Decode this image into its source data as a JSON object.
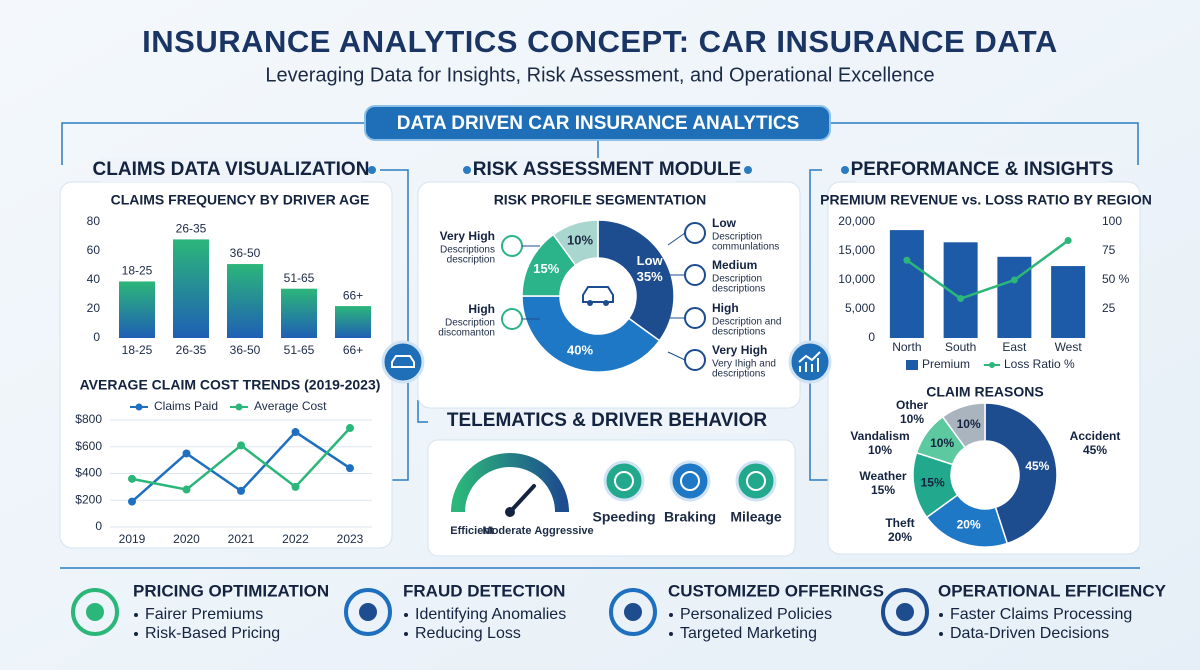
{
  "header": {
    "title": "INSURANCE ANALYTICS CONCEPT: CAR INSURANCE DATA",
    "subtitle": "Leveraging Data for Insights, Risk Assessment, and Operational Excellence",
    "banner": "DATA DRIVEN CAR INSURANCE ANALYTICS"
  },
  "sections": {
    "claims": "CLAIMS DATA VISUALIZATION",
    "risk": "RISK ASSESSMENT MODULE",
    "performance": "PERFORMANCE & INSIGHTS",
    "telematics": "TELEMATICS & DRIVER BEHAVIOR"
  },
  "chart_data": [
    {
      "type": "bar",
      "title": "CLAIMS FREQUENCY BY DRIVER AGE",
      "categories": [
        "18-25",
        "26-35",
        "36-50",
        "51-65",
        "66+"
      ],
      "values": [
        39,
        68,
        51,
        34,
        22
      ],
      "color": "#1f5fb5",
      "gradient_color": "#2cb67a",
      "ylim": [
        0,
        80
      ],
      "yticks": [
        0,
        20,
        40,
        60,
        80
      ],
      "grid": false
    },
    {
      "type": "line",
      "title": "AVERAGE CLAIM COST TRENDS (2019-2023)",
      "categories": [
        "2019",
        "2020",
        "2021",
        "2022",
        "2023"
      ],
      "series": [
        {
          "name": "Claims Paid",
          "color": "#1f6fc0",
          "values": [
            190,
            550,
            270,
            710,
            440
          ]
        },
        {
          "name": "Average Cost",
          "color": "#2bb67a",
          "values": [
            360,
            280,
            610,
            300,
            740
          ]
        }
      ],
      "ylim": [
        0,
        800
      ],
      "yticks": [
        0,
        {
          "value": 200,
          "label": "$200"
        },
        {
          "value": 400,
          "label": "$400"
        },
        {
          "value": 600,
          "label": "$600"
        },
        {
          "value": 800,
          "label": "$800"
        }
      ],
      "grid": true
    },
    {
      "type": "pie",
      "title": "RISK PROFILE SEGMENTATION",
      "categories": [
        "Low",
        null,
        null,
        null
      ],
      "values": [
        35,
        40,
        15,
        10
      ],
      "value_labels": [
        "35%",
        "40%",
        "15%",
        "10%"
      ],
      "colors": [
        "#1d4c8f",
        "#1f78c6",
        "#2bb38a",
        "#a9d6cf"
      ],
      "annotations": [
        {
          "label": "Low",
          "description": [
            "Description",
            "communlations"
          ]
        },
        {
          "label": "Medium",
          "description": [
            "Description",
            "descriptions"
          ]
        },
        {
          "label": "High",
          "description": [
            "Description and",
            "descriptions"
          ]
        },
        {
          "label": "Very High",
          "description": [
            "Very Ihigh and",
            "descriptions"
          ]
        },
        {
          "label": "Very High",
          "description": [
            "Descriptions",
            "description"
          ]
        },
        {
          "label": "High",
          "description": [
            "Description",
            "discomanton"
          ]
        }
      ]
    },
    {
      "type": "combo",
      "title": "PREMIUM REVENUE vs. LOSS RATIO BY REGION",
      "categories": [
        "North",
        "South",
        "East",
        "West"
      ],
      "series": [
        {
          "name": "Premium",
          "color": "#1d5aa8",
          "values": [
            18600,
            16500,
            14000,
            12400
          ]
        },
        {
          "name": "Loss Ratio %",
          "color": "#2bb67a",
          "axis": "y2",
          "values": [
            67,
            34,
            50,
            84
          ]
        }
      ],
      "ylim": [
        0,
        20000
      ],
      "yticks": [
        0,
        {
          "value": 5000,
          "label": "5,000"
        },
        {
          "value": 10000,
          "label": "10,000"
        },
        {
          "value": 15000,
          "label": "15,000"
        },
        {
          "value": 20000,
          "label": "20,000"
        }
      ],
      "y2lim": [
        0,
        100
      ],
      "y2ticks": [
        25,
        {
          "value": 50,
          "label": "50 %"
        },
        75,
        100
      ],
      "grid": false
    },
    {
      "type": "pie",
      "title": "CLAIM REASONS",
      "categories": [
        "Accident",
        "Theft",
        "Weather",
        "Vandalism",
        "Other"
      ],
      "values": [
        45,
        20,
        15,
        10,
        10
      ],
      "value_labels": [
        "45%",
        "20%",
        "15%",
        "10%",
        "10%"
      ],
      "colors": [
        "#1d4c8f",
        "#1f78c6",
        "#22a88c",
        "#5cc9a0",
        "#aab4bf"
      ]
    }
  ],
  "telematics": {
    "gauge_labels": [
      "Efficient",
      "Moderate",
      "Aggressive"
    ],
    "metrics": [
      "Speeding",
      "Braking",
      "Mileage"
    ]
  },
  "features": [
    {
      "title": "PRICING OPTIMIZATION",
      "items": [
        "Fairer Premiums",
        "Risk-Based Pricing"
      ]
    },
    {
      "title": "FRAUD DETECTION",
      "items": [
        "Identifying Anomalies",
        "Reducing Loss"
      ]
    },
    {
      "title": "CUSTOMIZED OFFERINGS",
      "items": [
        "Personalized Policies",
        "Targeted Marketing"
      ]
    },
    {
      "title": "OPERATIONAL EFFICIENCY",
      "items": [
        "Faster Claims Processing",
        "Data-Driven Decisions"
      ]
    }
  ]
}
